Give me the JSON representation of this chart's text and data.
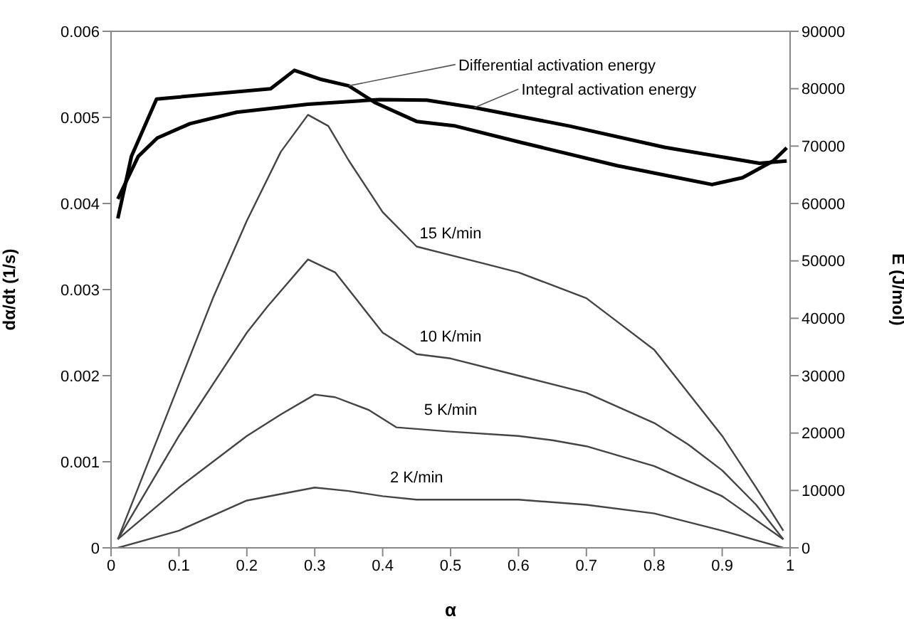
{
  "chart_data": {
    "type": "line",
    "xlabel": "α",
    "ylabel": "dα/dt (1/s)",
    "y2label": "E (J/mol)",
    "xlim": [
      0,
      1
    ],
    "xticks": [
      0,
      0.1,
      0.2,
      0.3,
      0.4,
      0.5,
      0.6,
      0.7,
      0.8,
      0.9,
      1
    ],
    "ylim": [
      0,
      0.006
    ],
    "yticks": [
      0,
      0.001,
      0.002,
      0.003,
      0.004,
      0.005,
      0.006
    ],
    "y2lim": [
      0,
      90000
    ],
    "y2ticks": [
      0,
      10000,
      20000,
      30000,
      40000,
      50000,
      60000,
      70000,
      80000,
      90000
    ],
    "marker": "none",
    "line_style": "solid",
    "series": [
      {
        "name": "Differential activation energy",
        "color": "#000000",
        "axis": "y2",
        "x": [
          0.01,
          0.03,
          0.067,
          0.235,
          0.27,
          0.31,
          0.35,
          0.39,
          0.45,
          0.507,
          0.605,
          0.745,
          0.885,
          0.93,
          0.975,
          0.995
        ],
        "values": [
          57400,
          68200,
          78200,
          80000,
          83200,
          81600,
          80500,
          77500,
          74300,
          73500,
          70600,
          66600,
          63300,
          64500,
          67400,
          69700
        ]
      },
      {
        "name": "Integral activation energy",
        "color": "#000000",
        "axis": "y2",
        "x": [
          0.01,
          0.04,
          0.068,
          0.116,
          0.185,
          0.29,
          0.395,
          0.465,
          0.535,
          0.675,
          0.815,
          0.955,
          0.995
        ],
        "values": [
          60800,
          68200,
          71400,
          73900,
          75900,
          77300,
          78100,
          78000,
          76700,
          73500,
          69800,
          67000,
          67400
        ]
      },
      {
        "name": "15 K/min",
        "color": "#444444",
        "x": [
          0.01,
          0.05,
          0.1,
          0.15,
          0.2,
          0.25,
          0.29,
          0.32,
          0.35,
          0.4,
          0.45,
          0.5,
          0.55,
          0.6,
          0.65,
          0.7,
          0.75,
          0.8,
          0.85,
          0.9,
          0.95,
          0.99
        ],
        "values": [
          0.0001,
          0.0009,
          0.0019,
          0.0029,
          0.0038,
          0.0046,
          0.00503,
          0.0049,
          0.0045,
          0.0039,
          0.0035,
          0.0034,
          0.0033,
          0.0032,
          0.00305,
          0.0029,
          0.0026,
          0.0023,
          0.0018,
          0.0013,
          0.0007,
          0.0002
        ]
      },
      {
        "name": "10 K/min",
        "color": "#444444",
        "x": [
          0.01,
          0.1,
          0.2,
          0.23,
          0.29,
          0.33,
          0.36,
          0.4,
          0.45,
          0.5,
          0.6,
          0.7,
          0.8,
          0.85,
          0.9,
          0.95,
          0.99
        ],
        "values": [
          0.0001,
          0.0013,
          0.0025,
          0.0028,
          0.00335,
          0.0032,
          0.0029,
          0.0025,
          0.00225,
          0.0022,
          0.002,
          0.0018,
          0.00145,
          0.0012,
          0.0009,
          0.0005,
          0.0001
        ]
      },
      {
        "name": "5 K/min",
        "color": "#444444",
        "x": [
          0.01,
          0.1,
          0.2,
          0.25,
          0.3,
          0.33,
          0.38,
          0.42,
          0.5,
          0.6,
          0.65,
          0.7,
          0.8,
          0.9,
          0.99
        ],
        "values": [
          0.0001,
          0.0007,
          0.0013,
          0.00155,
          0.00178,
          0.00175,
          0.0016,
          0.0014,
          0.00135,
          0.0013,
          0.00125,
          0.00118,
          0.00095,
          0.0006,
          0.0001
        ]
      },
      {
        "name": "2 K/min",
        "color": "#444444",
        "x": [
          0.01,
          0.1,
          0.2,
          0.3,
          0.35,
          0.4,
          0.45,
          0.6,
          0.7,
          0.8,
          0.9,
          0.99
        ],
        "values": [
          0,
          0.0002,
          0.00055,
          0.0007,
          0.00066,
          0.0006,
          0.00056,
          0.00056,
          0.0005,
          0.0004,
          0.0002,
          0
        ]
      }
    ]
  }
}
